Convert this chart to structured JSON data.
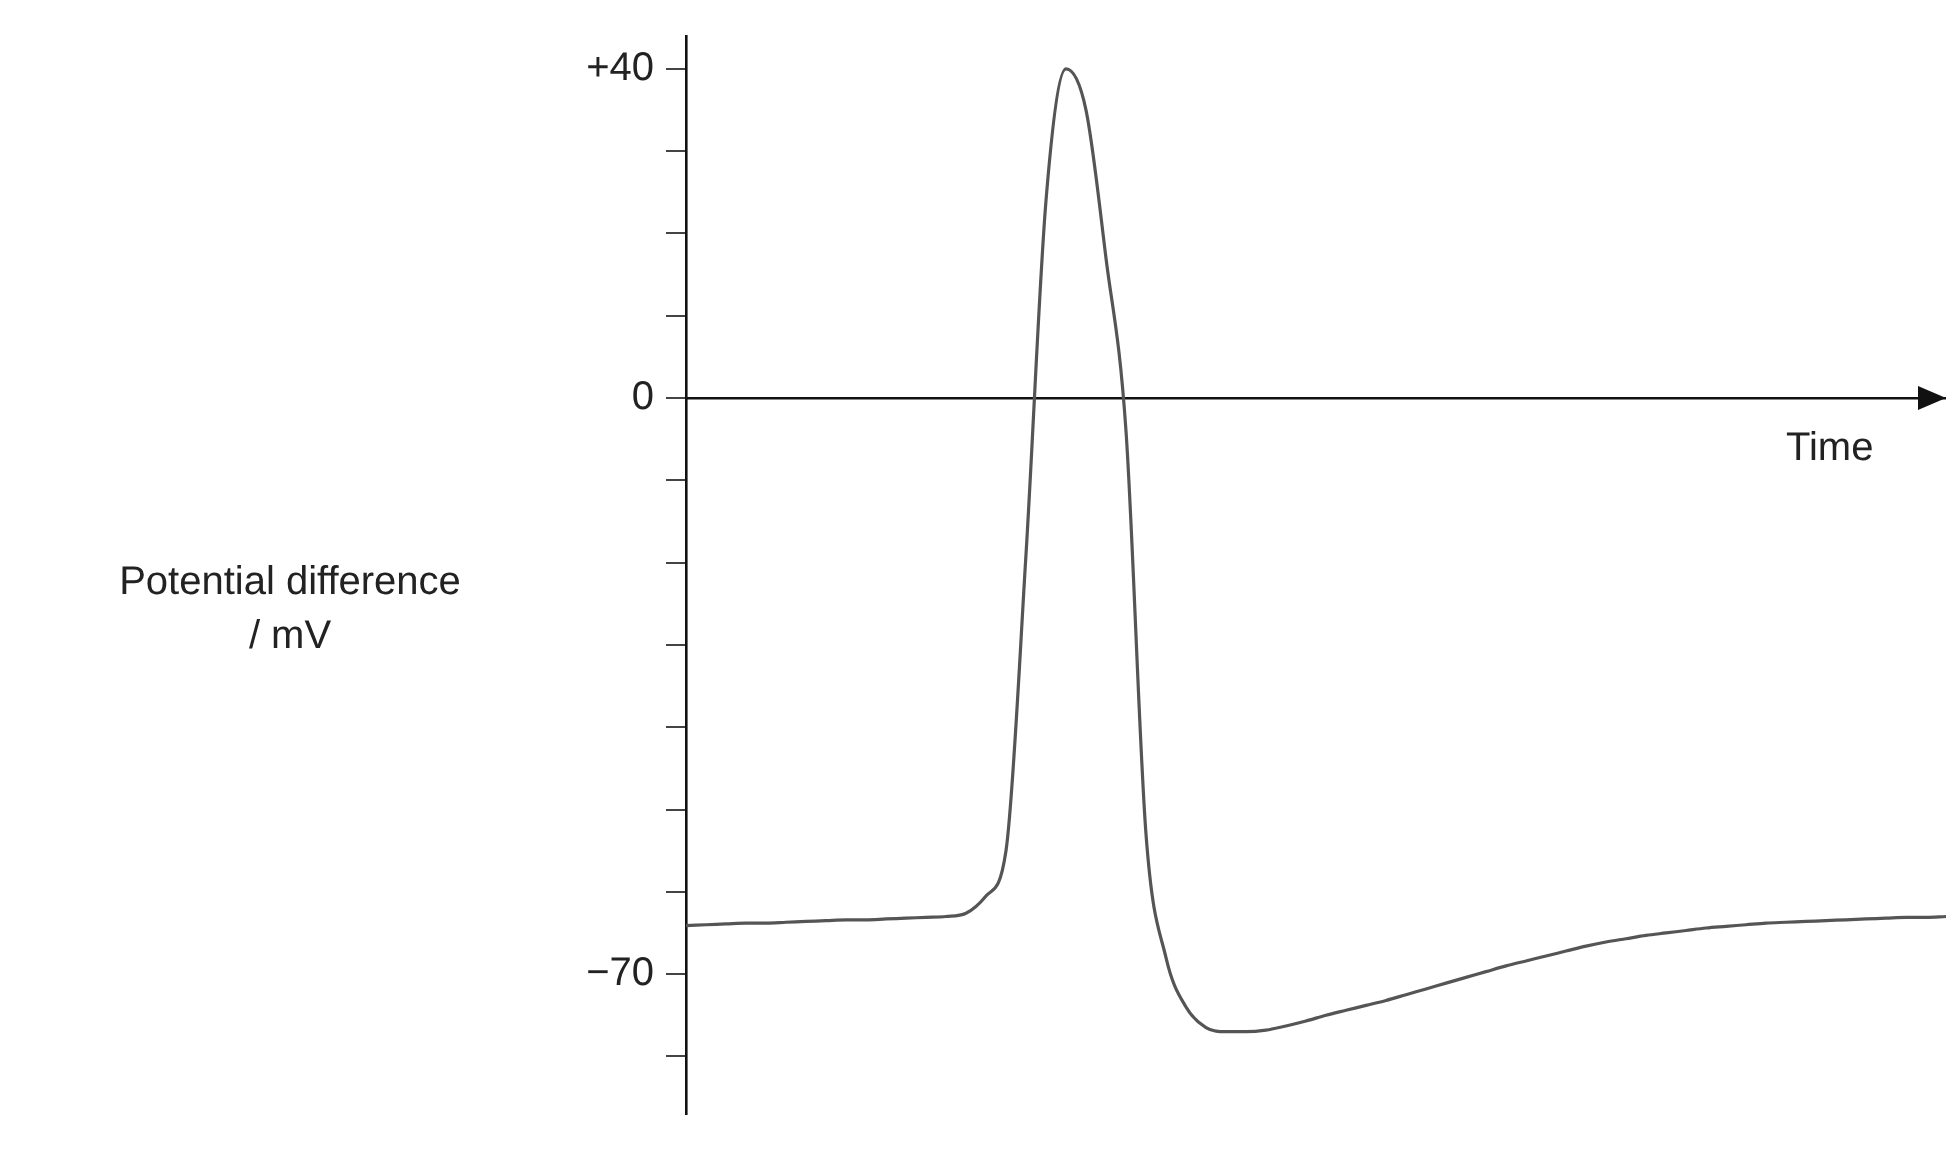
{
  "chart_data": {
    "type": "line",
    "xlabel": "Time",
    "ylabel": "Potential difference\n/ mV",
    "categories": [
      null,
      null,
      null,
      null,
      null,
      null,
      null,
      null,
      null,
      null,
      null,
      null,
      null,
      null,
      null,
      null,
      null,
      null,
      null,
      null,
      null,
      null,
      null,
      null,
      null,
      null,
      null,
      null,
      null,
      null,
      null,
      null,
      null,
      null,
      null,
      null,
      null,
      null,
      null,
      null,
      null,
      null,
      null,
      null,
      null,
      null,
      null,
      null,
      null,
      null,
      null,
      null,
      null,
      null,
      null,
      null,
      null,
      null,
      null,
      null,
      null,
      null,
      null,
      null
    ],
    "series": [
      {
        "color": "#555555",
        "values": [
          -64.1,
          -64,
          -63.9,
          -63.8,
          -63.8,
          -63.7,
          -63.6,
          -63.5,
          -63.4,
          -63.4,
          -63.3,
          -63.2,
          -63.1,
          -63,
          -62.6,
          -60.5,
          -55,
          -19,
          24,
          40,
          35,
          17,
          -4,
          -53,
          -68,
          -74,
          -76.5,
          -77,
          -77,
          -76.8,
          -76.3,
          -75.7,
          -75,
          -74.4,
          -73.8,
          -73.2,
          -72.5,
          -71.8,
          -71.1,
          -70.4,
          -69.7,
          -69,
          -68.4,
          -67.8,
          -67.2,
          -66.6,
          -66.1,
          -65.7,
          -65.3,
          -65,
          -64.7,
          -64.4,
          -64.2,
          -64,
          -63.8,
          -63.7,
          -63.6,
          -63.5,
          -63.4,
          -63.3,
          -63.2,
          -63.1,
          -63.1,
          -63
        ]
      }
    ],
    "ylim": [
      -87,
      44
    ],
    "yticks": [
      {
        "value": 40,
        "label": "+40"
      },
      {
        "value": 30,
        "label": null
      },
      {
        "value": 20,
        "label": null
      },
      {
        "value": 10,
        "label": null
      },
      0,
      {
        "value": -10,
        "label": null
      },
      {
        "value": -20,
        "label": null
      },
      {
        "value": -30,
        "label": null
      },
      {
        "value": -40,
        "label": null
      },
      {
        "value": -50,
        "label": null
      },
      {
        "value": -60,
        "label": null
      },
      {
        "value": -70,
        "label": "−70"
      },
      {
        "value": -80,
        "label": null
      }
    ],
    "tick_labels": "y"
  }
}
